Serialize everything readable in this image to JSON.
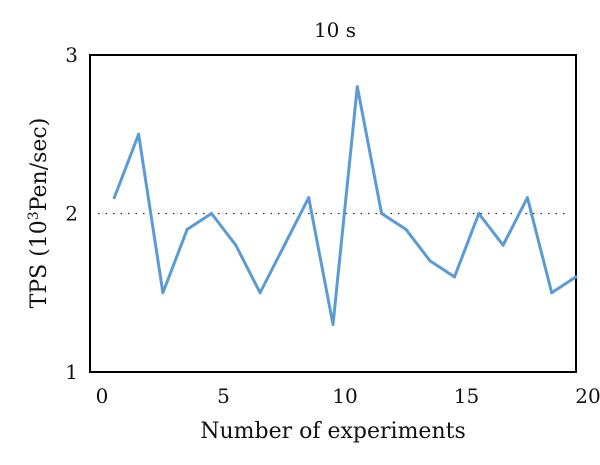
{
  "chart_data": {
    "type": "line",
    "title": "10 s",
    "xlabel": "Number of experiments",
    "ylabel_prefix": "TPS (10",
    "ylabel_sup": "3",
    "ylabel_suffix": "Pen/sec)",
    "xlim": [
      0,
      20
    ],
    "ylim": [
      1,
      3
    ],
    "x_ticks": [
      0,
      5,
      10,
      15,
      20
    ],
    "y_ticks": [
      1,
      2,
      3
    ],
    "x_tick_labels": [
      "0",
      "5",
      "10",
      "15",
      "20"
    ],
    "y_tick_labels": [
      "1",
      "2",
      "3"
    ],
    "reference_line": {
      "y": 2,
      "style": "dotted"
    },
    "series": [
      {
        "color": "#5b9bd5",
        "x": [
          1,
          2,
          3,
          4,
          5,
          6,
          7,
          8,
          9,
          10,
          11,
          12,
          13,
          14,
          15,
          16,
          17,
          18,
          19,
          20
        ],
        "values": [
          2.1,
          2.5,
          1.5,
          1.9,
          2.0,
          1.8,
          1.5,
          1.8,
          2.1,
          1.3,
          2.8,
          2.0,
          1.9,
          1.7,
          1.6,
          2.0,
          1.8,
          2.1,
          1.5,
          1.6
        ]
      }
    ],
    "grid": false,
    "legend": "none"
  }
}
